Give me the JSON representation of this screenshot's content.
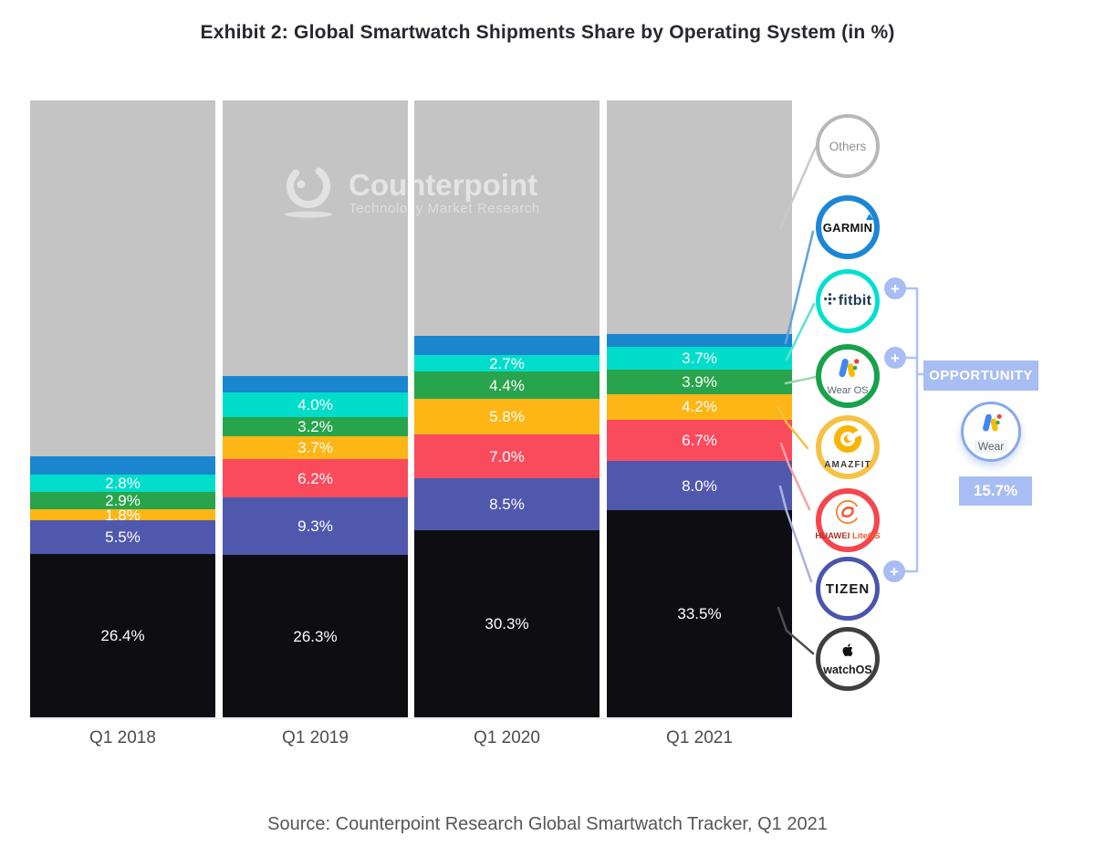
{
  "title": "Exhibit 2: Global Smartwatch Shipments Share by Operating System (in %)",
  "source": "Source: Counterpoint Research Global Smartwatch Tracker, Q1 2021",
  "watermark": {
    "name": "Counterpoint",
    "tagline": "Technology Market Research"
  },
  "chart_data": {
    "type": "bar",
    "stacked": true,
    "unit": "%",
    "title": "Exhibit 2: Global Smartwatch Shipments Share by Operating System (in %)",
    "categories": [
      "Q1 2018",
      "Q1 2019",
      "Q1 2020",
      "Q1 2021"
    ],
    "series_order": "top-to-bottom",
    "ylim": [
      0,
      100
    ],
    "grid": false,
    "legend_position": "right",
    "series": [
      {
        "name": "Others",
        "color": "#c4c4c4",
        "show_labels": false,
        "values": [
          57.7,
          44.7,
          38.1,
          37.8
        ]
      },
      {
        "name": "Garmin",
        "color": "#1a86d0",
        "show_labels": false,
        "values": [
          2.9,
          2.6,
          3.2,
          2.2
        ]
      },
      {
        "name": "Fitbit",
        "color": "#00ddcb",
        "show_labels": true,
        "values": [
          2.8,
          4.0,
          2.7,
          3.7
        ]
      },
      {
        "name": "Wear OS",
        "color": "#28a44c",
        "show_labels": true,
        "values": [
          2.9,
          3.2,
          4.4,
          3.9
        ]
      },
      {
        "name": "Amazfit",
        "color": "#fdb615",
        "show_labels": true,
        "values": [
          1.8,
          3.7,
          5.8,
          4.2
        ]
      },
      {
        "name": "Huawei LiteOS",
        "color": "#fa4b5c",
        "show_labels": true,
        "values": [
          0,
          6.2,
          7.0,
          6.7
        ]
      },
      {
        "name": "Tizen",
        "color": "#5058ae",
        "show_labels": true,
        "values": [
          5.5,
          9.3,
          8.5,
          8.0
        ]
      },
      {
        "name": "watchOS",
        "color": "#0d0d12",
        "show_labels": true,
        "values": [
          26.4,
          26.3,
          30.3,
          33.5
        ]
      }
    ]
  },
  "legend": [
    {
      "label": "Others",
      "ring": "#b8b8b8"
    },
    {
      "label": "GARMIN",
      "ring": "#1b86d6"
    },
    {
      "label": "fitbit",
      "ring": "#00e0d0"
    },
    {
      "label": "Wear OS",
      "ring": "#17a24b"
    },
    {
      "label": "AMAZFIT",
      "ring": "#f6c243"
    },
    {
      "label": "HUAWEI",
      "sublabel": "LiteOS",
      "ring": "#f5464e"
    },
    {
      "label": "TIZEN",
      "ring": "#4a55ab"
    },
    {
      "label": "watchOS",
      "ring": "#3f3f42"
    }
  ],
  "opportunity": {
    "label": "OPPORTUNITY",
    "wear_caption": "Wear",
    "value": "15.7%",
    "plus_symbol": "+",
    "accent": "#a7bdf3"
  }
}
